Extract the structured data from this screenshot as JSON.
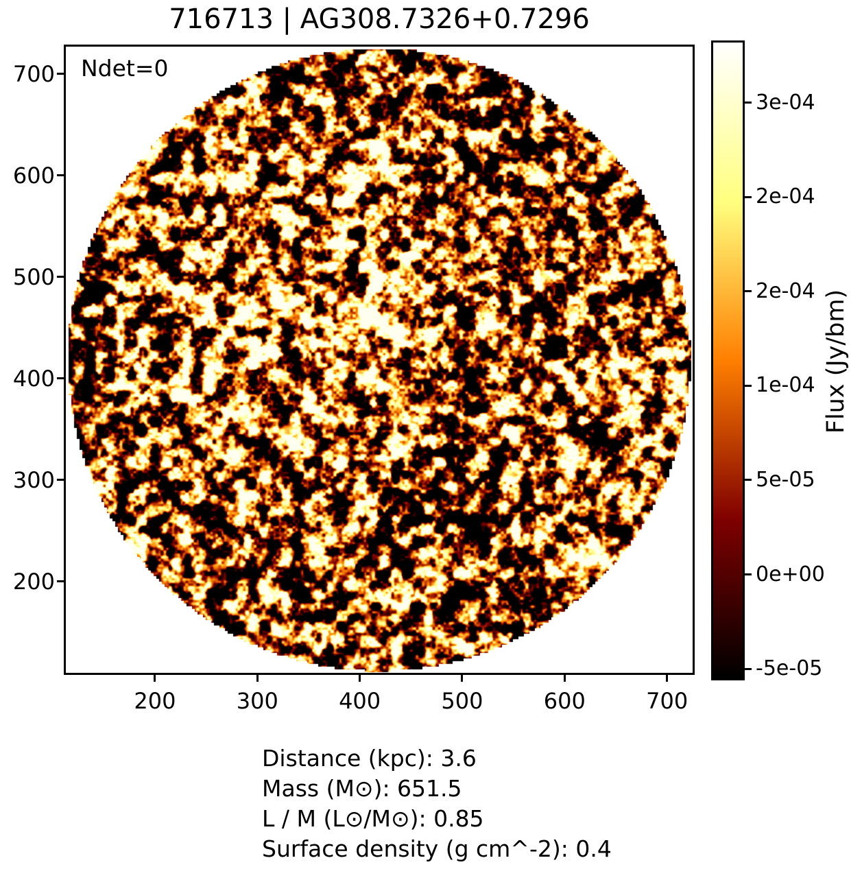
{
  "chart_data": {
    "type": "heatmap",
    "title": "716713 | AG308.7326+0.7296",
    "annotation": "Ndet=0",
    "x_tick_values": [
      200,
      300,
      400,
      500,
      600,
      700
    ],
    "x_tick_labels": [
      "200",
      "300",
      "400",
      "500",
      "600",
      "700"
    ],
    "y_tick_values": [
      700,
      600,
      500,
      400,
      300,
      200
    ],
    "y_tick_labels": [
      "700",
      "600",
      "500",
      "400",
      "300",
      "200"
    ],
    "x_range": [
      111,
      727
    ],
    "y_range": [
      108,
      729
    ],
    "grid": false,
    "image": {
      "shape": "circle",
      "description": "circular field of speckled instrumental noise, brighter blobs toward upper-left of center, jagged pixelated rim, white outside the circle",
      "colormap": "afmhot",
      "colormap_stops": [
        "#000000",
        "#7f0000",
        "#ff7f00",
        "#ffff7f",
        "#ffffff"
      ],
      "outside_color": "#ffffff",
      "seed": 101
    },
    "colorbar": {
      "label": "Flux (Jy/bm)",
      "tick_labels": [
        "3e-04",
        "2e-04",
        "2e-04",
        "1e-04",
        "5e-05",
        "0e+00",
        "-5e-05"
      ],
      "tick_fractions_from_top": [
        0.097,
        0.2445,
        0.392,
        0.5395,
        0.687,
        0.8345,
        0.982
      ],
      "orientation": "vertical"
    },
    "caption_lines": [
      "Distance (kpc): 3.6",
      "Mass (M⊙): 651.5",
      "L / M (L⊙/M⊙): 0.85",
      "Surface density (g cm^-2): 0.4"
    ],
    "colors": {
      "background": "#ffffff",
      "text": "#000000",
      "spine": "#000000"
    }
  }
}
